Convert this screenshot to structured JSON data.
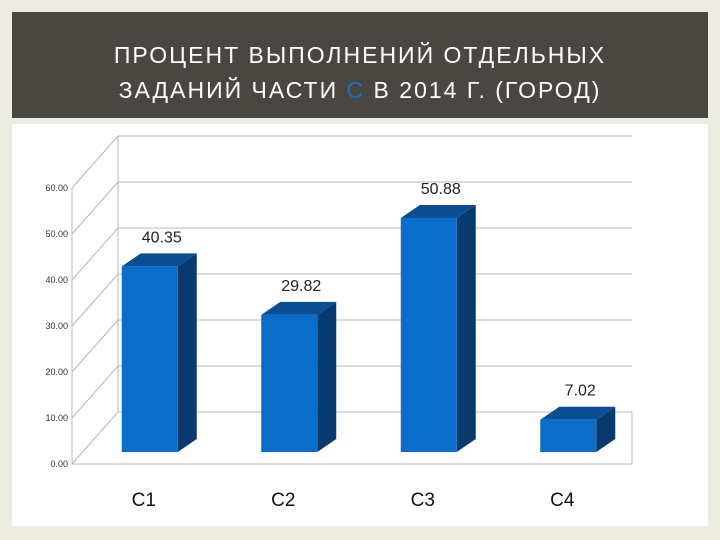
{
  "title": {
    "line1": "ПРОЦЕНТ ВЫПОЛНЕНИЙ ОТДЕЛЬНЫХ",
    "line2_before": "ЗАДАНИЙ ЧАСТИ ",
    "line2_accent": "С",
    "line2_after": " В 2014 Г. (ГОРОД)"
  },
  "colors": {
    "title_background": "#4a4642",
    "title_text": "#ffffff",
    "title_accent": "#1f6fc0",
    "bar_front": "#0a6dc9",
    "bar_top": "#0b4f92",
    "bar_side": "#083a70",
    "grid": "#b8b8b8"
  },
  "chart_data": {
    "type": "bar",
    "categories": [
      "С1",
      "С2",
      "С3",
      "С4"
    ],
    "values": [
      40.35,
      29.82,
      50.88,
      7.02
    ],
    "data_labels": [
      "40.35",
      "29.82",
      "50.88",
      "7.02"
    ],
    "y_ticks": [
      "0.00",
      "10.00",
      "20.00",
      "30.00",
      "40.00",
      "50.00",
      "60.00"
    ],
    "ylim": [
      0,
      60
    ],
    "grid": true,
    "style": "3d-column"
  }
}
